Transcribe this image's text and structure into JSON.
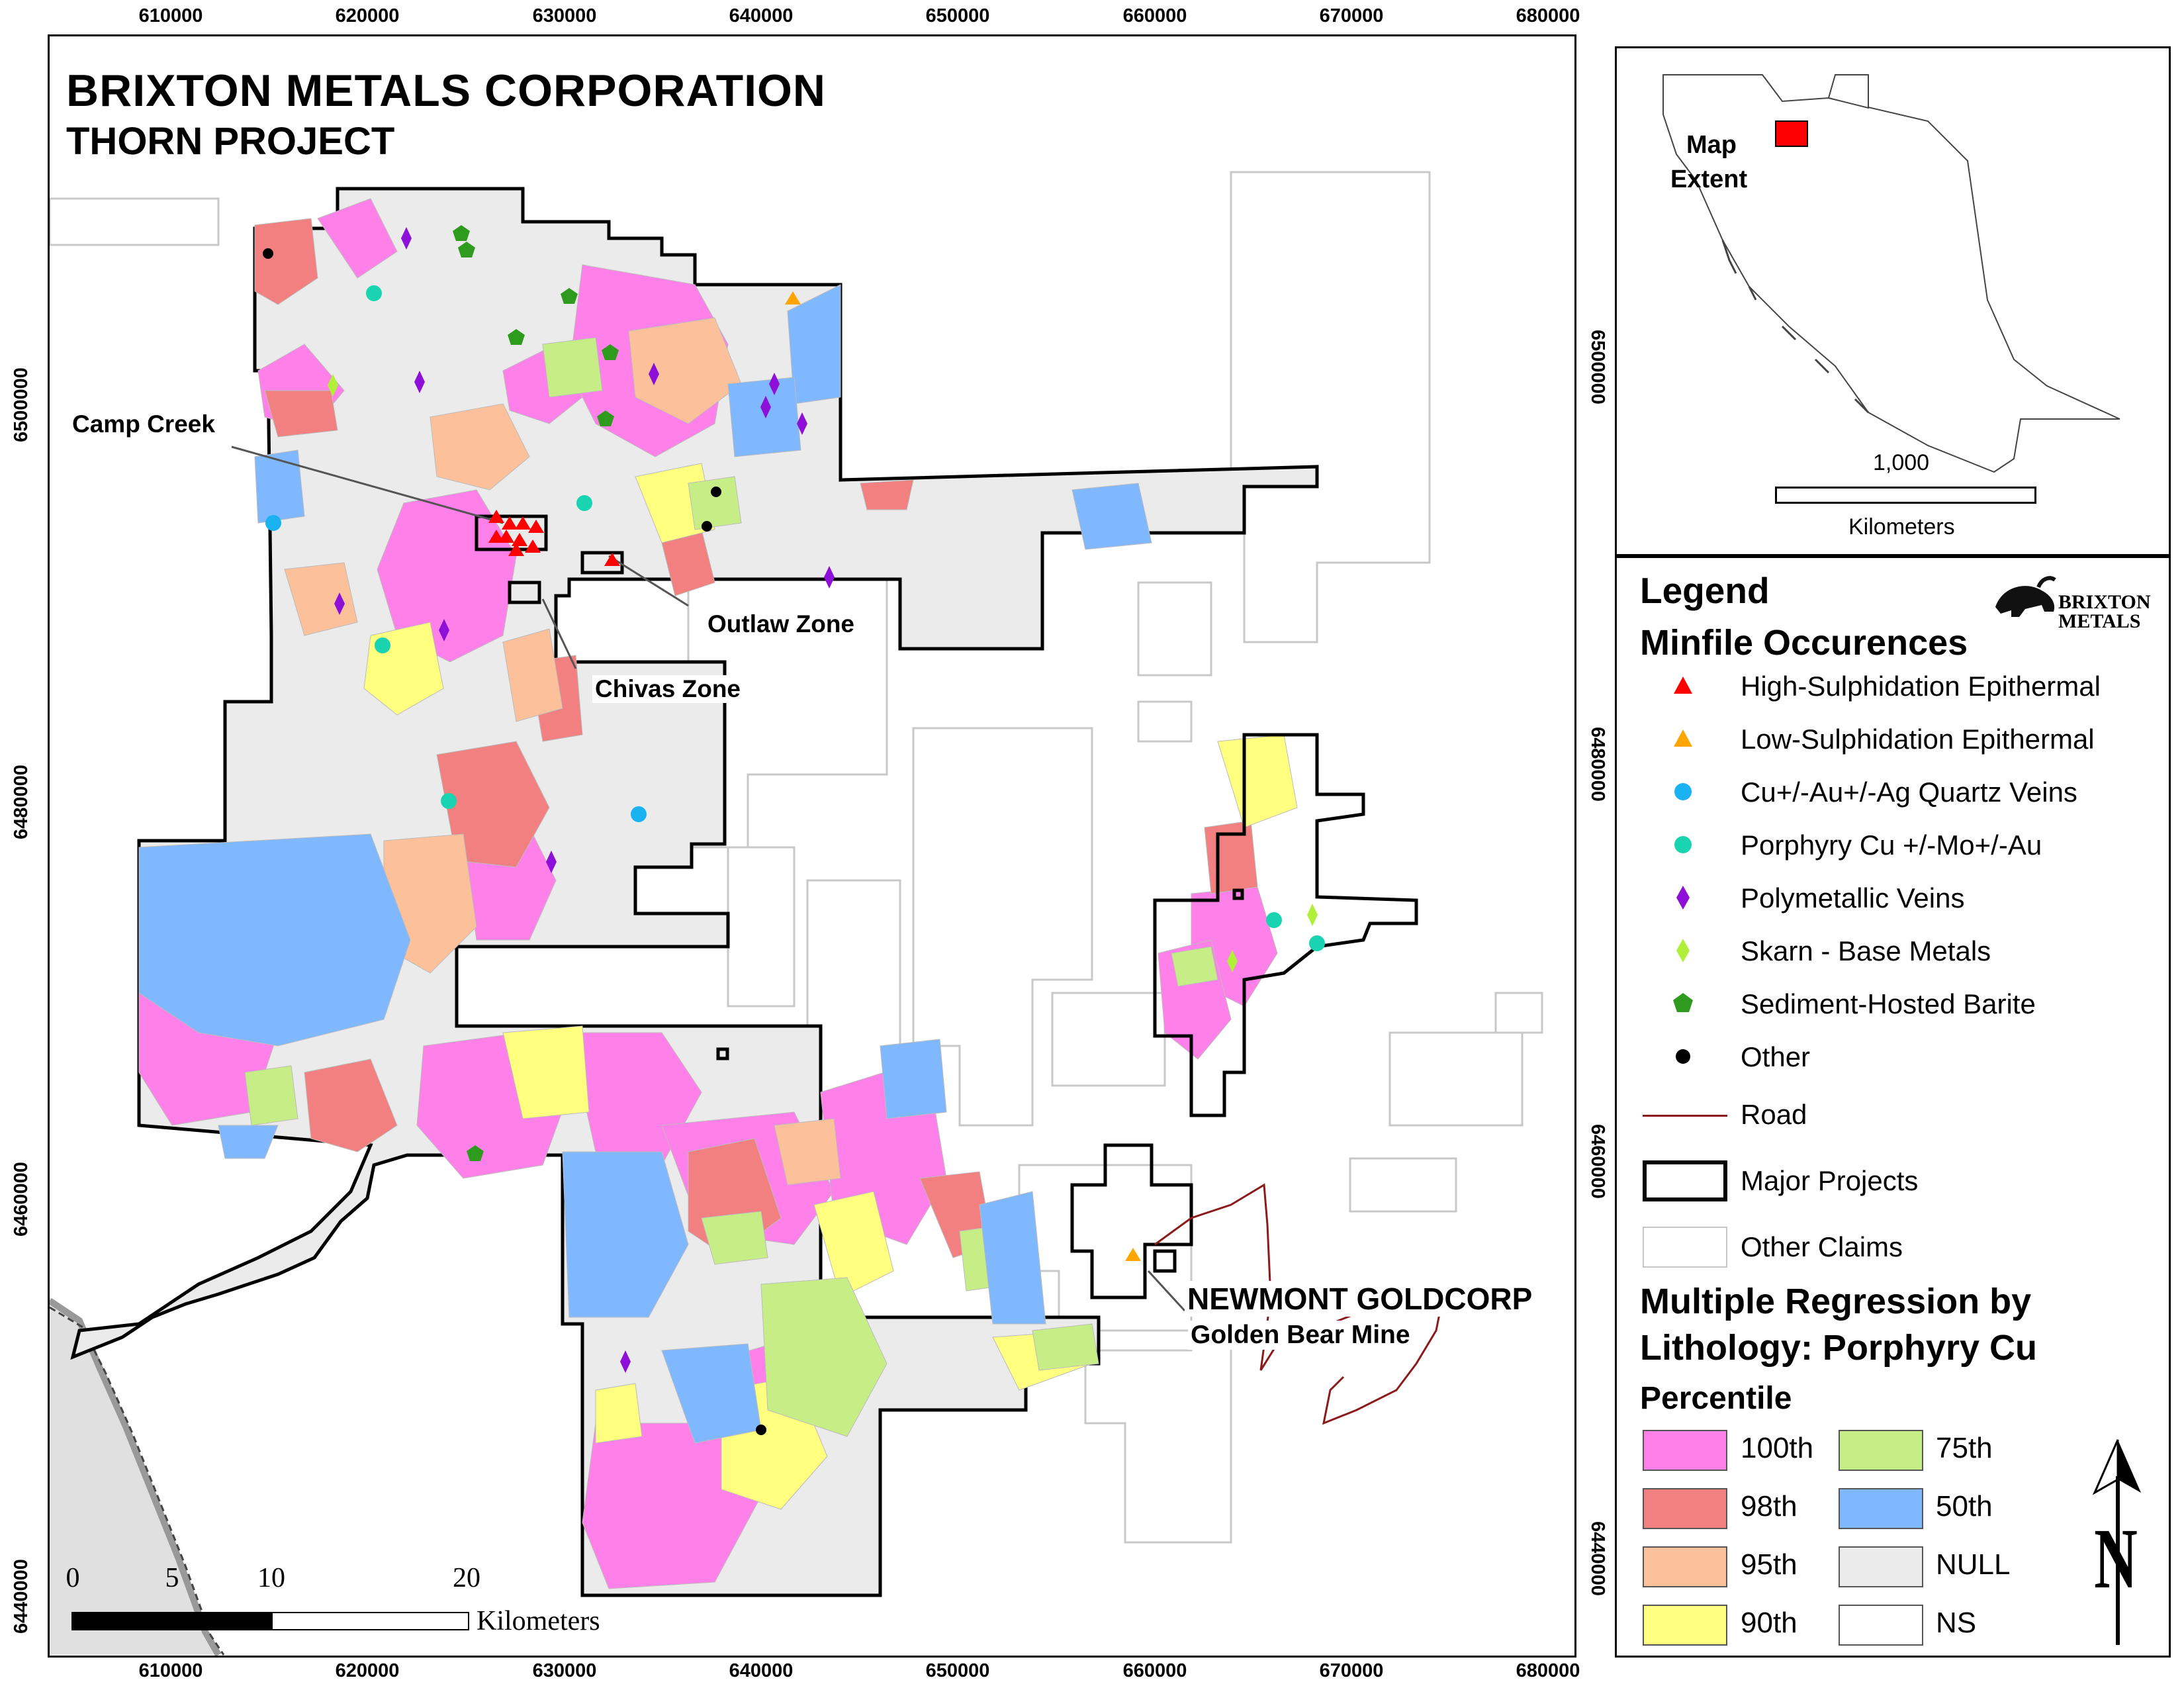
{
  "title": {
    "company": "BRIXTON METALS CORPORATION",
    "project": "THORN PROJECT"
  },
  "axes": {
    "easting_ticks": [
      "610000",
      "620000",
      "630000",
      "640000",
      "650000",
      "660000",
      "670000",
      "680000"
    ],
    "northing_ticks": [
      "6500000",
      "6480000",
      "6460000",
      "6440000"
    ]
  },
  "map_labels": {
    "camp_creek": "Camp Creek",
    "outlaw_zone": "Outlaw Zone",
    "chivas_zone": "Chivas Zone",
    "newmont": "NEWMONT GOLDCORP",
    "golden_bear": "Golden Bear Mine"
  },
  "scale_bar": {
    "ticks": [
      "0",
      "5",
      "10",
      "20"
    ],
    "unit": "Kilometers"
  },
  "inset": {
    "label": "Map\nExtent",
    "label_line1": "Map",
    "label_line2": "Extent",
    "scale_value": "1,000",
    "scale_unit": "Kilometers"
  },
  "legend": {
    "title": "Legend",
    "minfile_title": "Minfile Occurences",
    "logo_text_1": "BRIXTON",
    "logo_text_2": "METALS",
    "minfile_items": [
      {
        "label": "High-Sulphidation Epithermal",
        "symbol": "triangle",
        "color": "#ff0000"
      },
      {
        "label": "Low-Sulphidation Epithermal",
        "symbol": "triangle",
        "color": "#ffa500"
      },
      {
        "label": "Cu+/-Au+/-Ag Quartz Veins",
        "symbol": "circle",
        "color": "#1ab2f0"
      },
      {
        "label": "Porphyry Cu +/-Mo+/-Au",
        "symbol": "circle",
        "color": "#1ad3b0"
      },
      {
        "label": "Polymetallic Veins",
        "symbol": "diamond",
        "color": "#8e0fd8"
      },
      {
        "label": "Skarn - Base Metals",
        "symbol": "diamond",
        "color": "#b0f03a"
      },
      {
        "label": "Sediment-Hosted Barite",
        "symbol": "pentagon",
        "color": "#2e9a1e"
      },
      {
        "label": "Other",
        "symbol": "circle",
        "color": "#000000"
      }
    ],
    "road": "Road",
    "major_projects": "Major Projects",
    "other_claims": "Other Claims",
    "regression_title_1": "Multiple Regression by",
    "regression_title_2": "Lithology: Porphyry Cu",
    "percentile_title": "Percentile",
    "percentiles": [
      {
        "label": "100th",
        "color": "#ff80e8"
      },
      {
        "label": "98th",
        "color": "#f28080"
      },
      {
        "label": "95th",
        "color": "#fcc09a"
      },
      {
        "label": "90th",
        "color": "#ffff80"
      },
      {
        "label": "75th",
        "color": "#c7ee86"
      },
      {
        "label": "50th",
        "color": "#80b8ff"
      },
      {
        "label": "NULL",
        "color": "#ebebeb"
      },
      {
        "label": "NS",
        "color": "#ffffff"
      }
    ]
  },
  "north_arrow": "N"
}
